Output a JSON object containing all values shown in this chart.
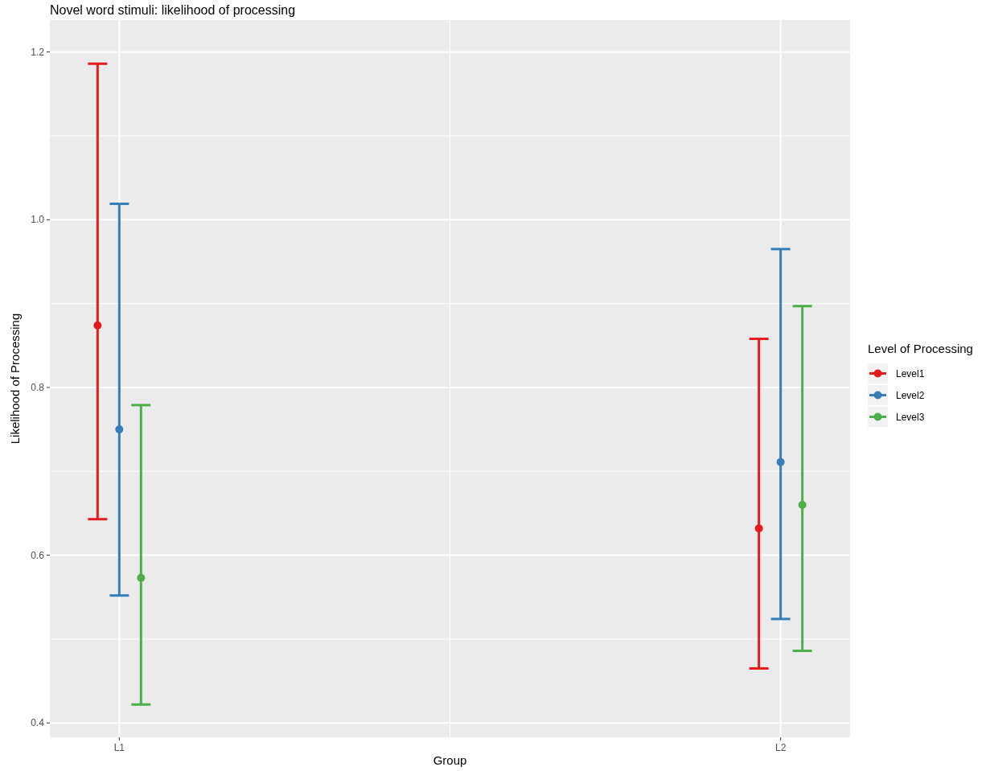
{
  "chart_data": {
    "type": "scatter",
    "title": "Novel word stimuli: likelihood of processing",
    "xlabel": "Group",
    "ylabel": "Likelihood of Processing",
    "legend_title": "Level of Processing",
    "categories": [
      "L1",
      "L2"
    ],
    "series": [
      {
        "name": "Level1",
        "color": "#e41a1c",
        "values": [
          0.874,
          0.632
        ],
        "errors": [
          [
            0.643,
            1.186
          ],
          [
            0.465,
            0.858
          ]
        ]
      },
      {
        "name": "Level2",
        "color": "#377eb8",
        "values": [
          0.75,
          0.711
        ],
        "errors": [
          [
            0.552,
            1.019
          ],
          [
            0.524,
            0.965
          ]
        ]
      },
      {
        "name": "Level3",
        "color": "#4daf4a",
        "values": [
          0.573,
          0.66
        ],
        "errors": [
          [
            0.422,
            0.779
          ],
          [
            0.486,
            0.897
          ]
        ]
      }
    ],
    "ylim": [
      0.383,
      1.238
    ],
    "yticks": [
      0.4,
      0.6,
      0.8,
      {
        "value": 1,
        "label": "1.0"
      },
      1.2
    ],
    "grid": true,
    "legend": "right",
    "marker": "circle"
  }
}
